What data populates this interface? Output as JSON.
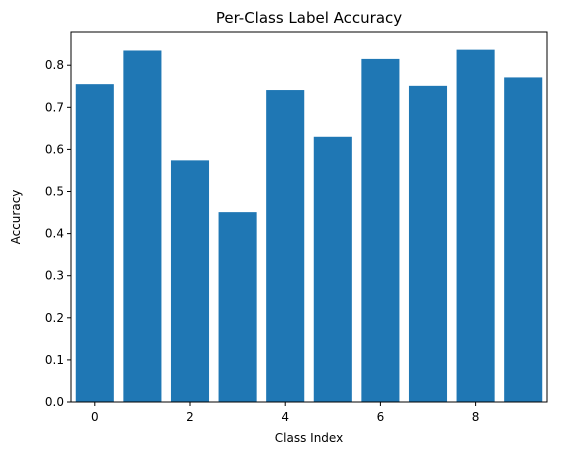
{
  "chart_data": {
    "type": "bar",
    "title": "Per-Class Label Accuracy",
    "xlabel": "Class Index",
    "ylabel": "Accuracy",
    "categories": [
      0,
      1,
      2,
      3,
      4,
      5,
      6,
      7,
      8,
      9
    ],
    "values": [
      0.755,
      0.835,
      0.574,
      0.451,
      0.741,
      0.63,
      0.815,
      0.751,
      0.837,
      0.771
    ],
    "xticks": [
      0,
      2,
      4,
      6,
      8
    ],
    "xlim": [
      -0.5,
      9.5
    ],
    "ylim": [
      0,
      0.8789
    ],
    "yticks": [
      0.0,
      0.1,
      0.2,
      0.3,
      0.4,
      0.5,
      0.6,
      0.7,
      0.8
    ],
    "ytick_labels": [
      "0.0",
      "0.1",
      "0.2",
      "0.3",
      "0.4",
      "0.5",
      "0.6",
      "0.7",
      "0.8"
    ],
    "bar_color": "#1f77b4",
    "grid": false,
    "legend": "none"
  }
}
